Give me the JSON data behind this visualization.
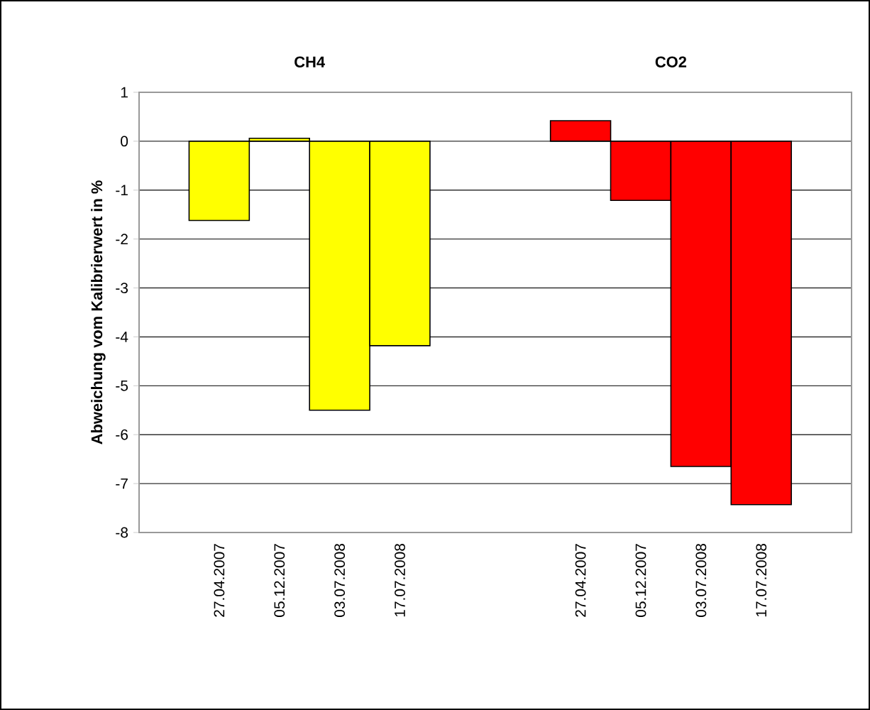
{
  "chart_data": {
    "type": "bar",
    "ylabel": "Abweichung vom Kalibrierwert in %",
    "annotations": [
      "CH4",
      "CO2"
    ],
    "categories": [
      "27.04.2007",
      "05.12.2007",
      "03.07.2008",
      "17.07.2008",
      null,
      null,
      "27.04.2007",
      "05.12.2007",
      "03.07.2008",
      "17.07.2008"
    ],
    "series": [
      {
        "color": "#ffff00",
        "values": [
          -1.62,
          0.06,
          -5.5,
          -4.18,
          null,
          null,
          null,
          null,
          null,
          null
        ]
      },
      {
        "color": "#ff0000",
        "values": [
          null,
          null,
          null,
          null,
          null,
          null,
          0.42,
          -1.21,
          -6.65,
          -7.43
        ]
      }
    ],
    "ylim": [
      -8,
      1
    ],
    "yticks": [
      -8,
      -7,
      -6,
      -5,
      -4,
      -3,
      -2,
      -1,
      0,
      1
    ],
    "grid": "y"
  }
}
